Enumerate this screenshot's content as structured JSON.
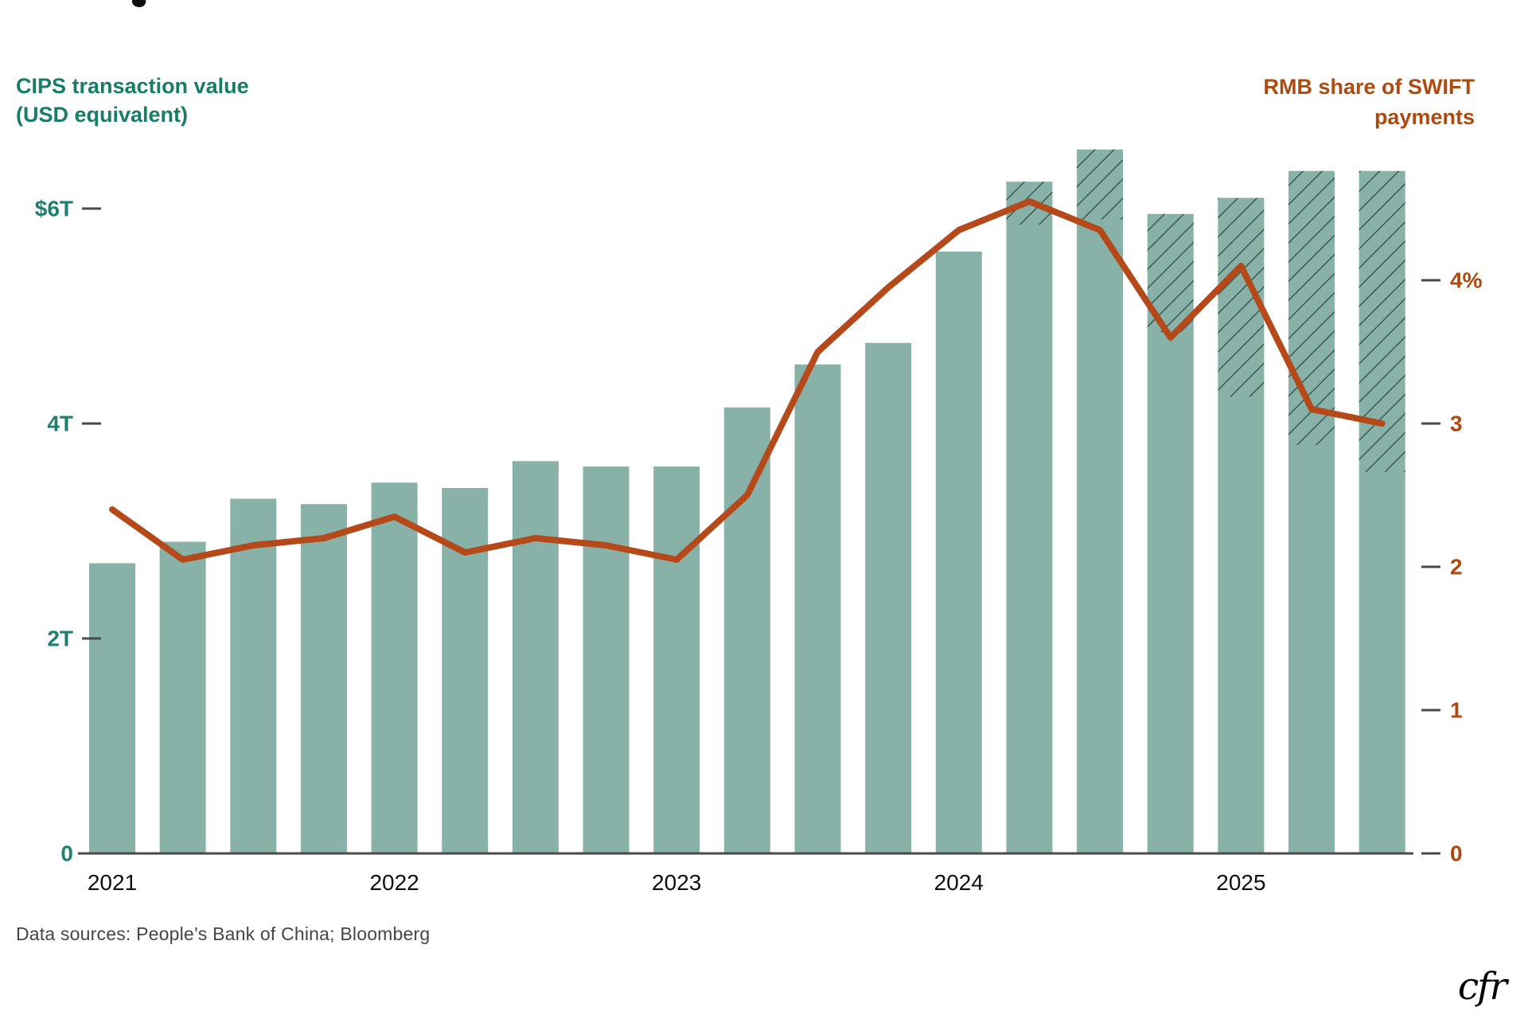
{
  "titles": {
    "left_line1": "CIPS transaction value",
    "left_line2": "(USD equivalent)",
    "right_line1": "RMB share of SWIFT",
    "right_line2": "payments"
  },
  "footer": {
    "sources": "Data sources: People’s Bank of China; Bloomberg",
    "logo": "cfr"
  },
  "colors": {
    "bar_fill": "#88b1a7",
    "bar_hatch_stroke": "#3b5955",
    "line": "#b5491a",
    "left_axis_text": "#1d8070",
    "right_axis_text": "#ae4a10",
    "year_text": "#101010",
    "axis_line": "#4a4a4a",
    "tick_dash": "#4a4a4a"
  },
  "chart_data": {
    "type": "bar",
    "title": "",
    "x_quarters": [
      "2021 Q1",
      "2021 Q2",
      "2021 Q3",
      "2021 Q4",
      "2022 Q1",
      "2022 Q2",
      "2022 Q3",
      "2022 Q4",
      "2023 Q1",
      "2023 Q2",
      "2023 Q3",
      "2023 Q4",
      "2024 Q1",
      "2024 Q2",
      "2024 Q3",
      "2024 Q4",
      "2025 Q1",
      "2025 Q2",
      "2025 Q3"
    ],
    "x_year_ticks": [
      {
        "label": "2021",
        "quarter_index": 0
      },
      {
        "label": "2022",
        "quarter_index": 4
      },
      {
        "label": "2023",
        "quarter_index": 8
      },
      {
        "label": "2024",
        "quarter_index": 12
      },
      {
        "label": "2025",
        "quarter_index": 16
      }
    ],
    "series": [
      {
        "name": "CIPS transaction value (USD equivalent)",
        "kind": "bar",
        "unit": "USD trillions",
        "values": [
          2.7,
          2.9,
          3.3,
          3.25,
          3.45,
          3.4,
          3.65,
          3.6,
          3.6,
          4.15,
          4.55,
          4.75,
          5.6,
          6.25,
          6.55,
          5.95,
          6.1,
          6.35,
          6.35
        ],
        "hatched_from": [
          null,
          null,
          null,
          null,
          null,
          null,
          null,
          null,
          null,
          null,
          null,
          null,
          null,
          5.85,
          5.9,
          4.85,
          4.25,
          3.8,
          3.55
        ]
      },
      {
        "name": "RMB share of SWIFT payments",
        "kind": "line",
        "unit": "percent",
        "values": [
          2.4,
          2.05,
          2.15,
          2.2,
          2.35,
          2.1,
          2.2,
          2.15,
          2.05,
          2.5,
          3.5,
          3.95,
          4.35,
          4.55,
          4.35,
          3.6,
          4.1,
          3.1,
          3.0
        ]
      }
    ],
    "left_axis": {
      "label": "CIPS transaction value (USD equivalent)",
      "range": [
        0,
        6.6
      ],
      "ticks": [
        {
          "label": "$6T",
          "value": 6,
          "dash": true
        },
        {
          "label": "4T",
          "value": 4,
          "dash": true
        },
        {
          "label": "2T",
          "value": 2,
          "dash": true
        },
        {
          "label": "0",
          "value": 0,
          "dash": false
        }
      ]
    },
    "right_axis": {
      "label": "RMB share of SWIFT payments",
      "range": [
        0,
        4.6
      ],
      "ticks": [
        {
          "label": "4%",
          "value": 4,
          "dash": true
        },
        {
          "label": "3",
          "value": 3,
          "dash": true
        },
        {
          "label": "2",
          "value": 2,
          "dash": true
        },
        {
          "label": "1",
          "value": 1,
          "dash": true
        },
        {
          "label": "0",
          "value": 0,
          "dash": true
        }
      ]
    },
    "grid": false,
    "legend_position": "axis-corner-labels"
  }
}
